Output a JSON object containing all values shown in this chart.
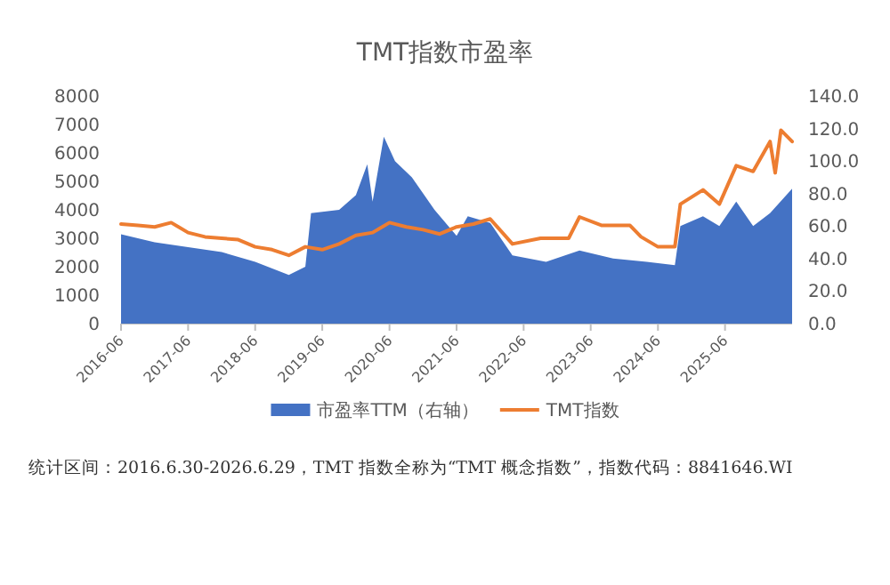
{
  "chart_data": {
    "type": "line",
    "title": "TMT指数市盈率",
    "xlim": [
      "2016-06",
      "2026-06"
    ],
    "xticks": [
      {
        "value": "2016-06",
        "label": "2016-06"
      },
      {
        "value": "2017-06",
        "label": "2017-06"
      },
      {
        "value": "2018-06",
        "label": "2018-06"
      },
      {
        "value": "2019-06",
        "label": "2019-06"
      },
      {
        "value": "2020-06",
        "label": "2020-06"
      },
      {
        "value": "2021-06",
        "label": "2021-06"
      },
      {
        "value": "2022-06",
        "label": "2022-06"
      },
      {
        "value": "2023-06",
        "label": "2023-06"
      },
      {
        "value": "2024-06",
        "label": "2024-06"
      },
      {
        "value": "2025-06",
        "label": "2025-06"
      }
    ],
    "ylim": [
      0,
      8000
    ],
    "yticks": [
      0,
      1000,
      2000,
      3000,
      4000,
      5000,
      6000,
      7000,
      8000
    ],
    "y2lim": [
      0,
      140
    ],
    "y2ticks": [
      {
        "value": 0,
        "label": "0.0"
      },
      {
        "value": 20,
        "label": "20.0"
      },
      {
        "value": 40,
        "label": "40.0"
      },
      {
        "value": 60,
        "label": "60.0"
      },
      {
        "value": 80,
        "label": "80.0"
      },
      {
        "value": 100,
        "label": "100.0"
      },
      {
        "value": 120,
        "label": "120.0"
      },
      {
        "value": 140,
        "label": "140.0"
      }
    ],
    "series": [
      {
        "name": "市盈率TTM（右轴）",
        "type": "area",
        "axis": "y2",
        "color": "#4472c4",
        "x": [
          "2016-06",
          "2016-12",
          "2017-06",
          "2017-12",
          "2018-06",
          "2018-12",
          "2019-03",
          "2019-04",
          "2019-09",
          "2019-12",
          "2020-02",
          "2020-03",
          "2020-05",
          "2020-07",
          "2020-10",
          "2021-02",
          "2021-06",
          "2021-08",
          "2021-12",
          "2022-04",
          "2022-10",
          "2023-04",
          "2023-10",
          "2024-04",
          "2024-09",
          "2024-10",
          "2025-02",
          "2025-05",
          "2025-08",
          "2025-11",
          "2026-02",
          "2026-06"
        ],
        "values": [
          55,
          50,
          47,
          44,
          38,
          30,
          35,
          68,
          70,
          79,
          98,
          75,
          115,
          100,
          90,
          70,
          54,
          66,
          62,
          42,
          38,
          45,
          40,
          38,
          36,
          60,
          66,
          60,
          75,
          60,
          68,
          83
        ]
      },
      {
        "name": "TMT指数",
        "color": "#ed7d31",
        "x": [
          "2016-06",
          "2016-09",
          "2016-12",
          "2017-03",
          "2017-06",
          "2017-09",
          "2017-12",
          "2018-03",
          "2018-06",
          "2018-09",
          "2018-12",
          "2019-03",
          "2019-06",
          "2019-09",
          "2019-12",
          "2020-03",
          "2020-06",
          "2020-09",
          "2020-12",
          "2021-03",
          "2021-06",
          "2021-09",
          "2021-12",
          "2022-04",
          "2022-09",
          "2023-02",
          "2023-04",
          "2023-08",
          "2024-01",
          "2024-03",
          "2024-06",
          "2024-09",
          "2024-10",
          "2025-02",
          "2025-05",
          "2025-08",
          "2025-11",
          "2026-02",
          "2026-03",
          "2026-04",
          "2026-06"
        ],
        "values": [
          3500,
          3450,
          3400,
          3550,
          3200,
          3050,
          3000,
          2950,
          2700,
          2600,
          2400,
          2700,
          2600,
          2800,
          3100,
          3200,
          3550,
          3400,
          3300,
          3150,
          3400,
          3500,
          3680,
          2800,
          3000,
          3000,
          3750,
          3450,
          3450,
          3050,
          2700,
          2700,
          4200,
          4700,
          4200,
          5550,
          5350,
          6400,
          5300,
          6800,
          6400
        ]
      }
    ],
    "legend": "bottom",
    "annotations": [
      "统计区间：2016.6.30-2026.6.29，TMT 指数全称为“TMT 概念指数”，指数代码：8841646.WI"
    ]
  }
}
